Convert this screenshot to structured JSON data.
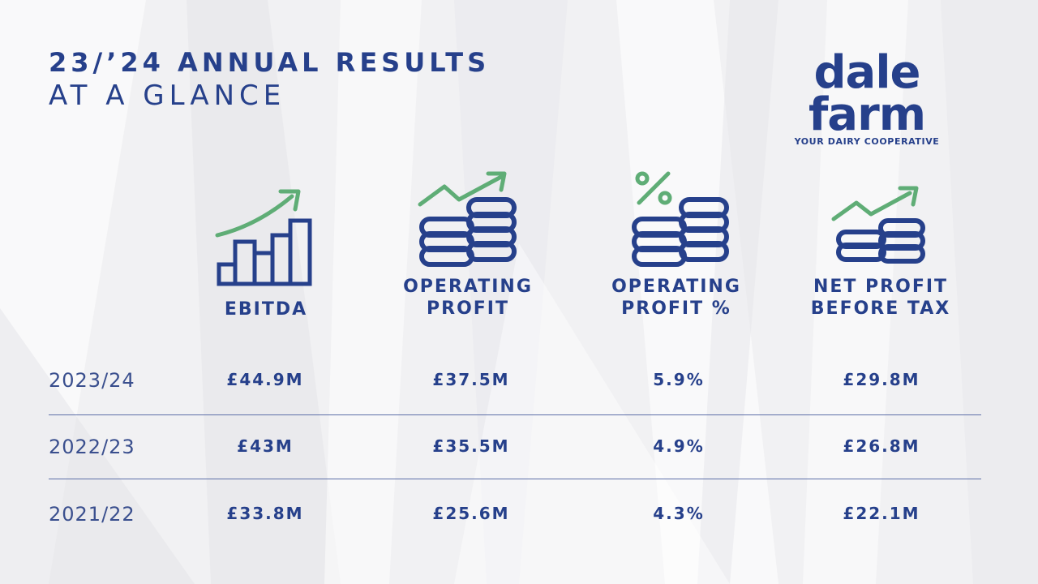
{
  "header": {
    "title": "23/’24 ANNUAL RESULTS",
    "subtitle": "AT A GLANCE"
  },
  "logo": {
    "wordmark": "dale farm",
    "tagline": "YOUR DAIRY COOPERATIVE"
  },
  "colors": {
    "navy": "#26408b",
    "green": "#5fad76",
    "background": "#f1f1f3"
  },
  "columns": [
    {
      "label_lines": [
        "EBITDA"
      ],
      "icon": "bar-chart-growth-icon"
    },
    {
      "label_lines": [
        "OPERATING",
        "PROFIT"
      ],
      "icon": "coins-growth-icon"
    },
    {
      "label_lines": [
        "OPERATING",
        "PROFIT %"
      ],
      "icon": "coins-percent-icon"
    },
    {
      "label_lines": [
        "NET PROFIT",
        "BEFORE TAX"
      ],
      "icon": "coins-growth-icon"
    }
  ],
  "rows": [
    {
      "year": "2023/24",
      "values": [
        "£44.9M",
        "£37.5M",
        "5.9%",
        "£29.8M"
      ]
    },
    {
      "year": "2022/23",
      "values": [
        "£43M",
        "£35.5M",
        "4.9%",
        "£26.8M"
      ]
    },
    {
      "year": "2021/22",
      "values": [
        "£33.8M",
        "£25.6M",
        "4.3%",
        "£22.1M"
      ]
    }
  ]
}
